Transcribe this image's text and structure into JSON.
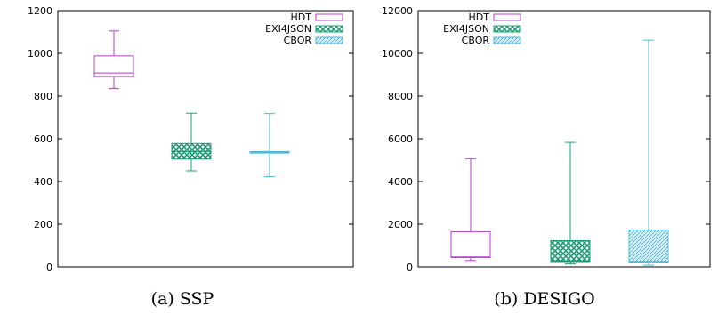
{
  "chart_data": [
    {
      "type": "boxplot",
      "caption": "(a) SSP",
      "ylim": [
        0,
        1200
      ],
      "yticks": [
        0,
        200,
        400,
        600,
        800,
        1000,
        1200
      ],
      "grid": false,
      "legend_position": "top-right",
      "series": [
        {
          "name": "HDT",
          "color": "#b03fc8",
          "pattern": "none",
          "whisker_low": 835,
          "q1": 892,
          "median": 908,
          "q3": 988,
          "whisker_high": 1105
        },
        {
          "name": "EXI4JSON",
          "color": "#1f9e74",
          "pattern": "crosshatch",
          "whisker_low": 450,
          "q1": 505,
          "median": 540,
          "q3": 578,
          "whisker_high": 720
        },
        {
          "name": "CBOR",
          "color": "#4fb5d8",
          "pattern": "diagonal",
          "whisker_low": 423,
          "q1": 533,
          "median": 537,
          "q3": 540,
          "whisker_high": 718
        }
      ]
    },
    {
      "type": "boxplot",
      "caption": "(b) DESIGO",
      "ylim": [
        0,
        12000
      ],
      "yticks": [
        0,
        2000,
        4000,
        6000,
        8000,
        10000,
        12000
      ],
      "grid": false,
      "legend_position": "top-left",
      "series": [
        {
          "name": "HDT",
          "color": "#b03fc8",
          "pattern": "none",
          "whisker_low": 300,
          "q1": 440,
          "median": 470,
          "q3": 1650,
          "whisker_high": 5070
        },
        {
          "name": "EXI4JSON",
          "color": "#1f9e74",
          "pattern": "crosshatch",
          "whisker_low": 140,
          "q1": 250,
          "median": 290,
          "q3": 1230,
          "whisker_high": 5830
        },
        {
          "name": "CBOR",
          "color": "#4fb5d8",
          "pattern": "diagonal",
          "whisker_low": 80,
          "q1": 220,
          "median": 260,
          "q3": 1730,
          "whisker_high": 10620
        }
      ]
    }
  ]
}
